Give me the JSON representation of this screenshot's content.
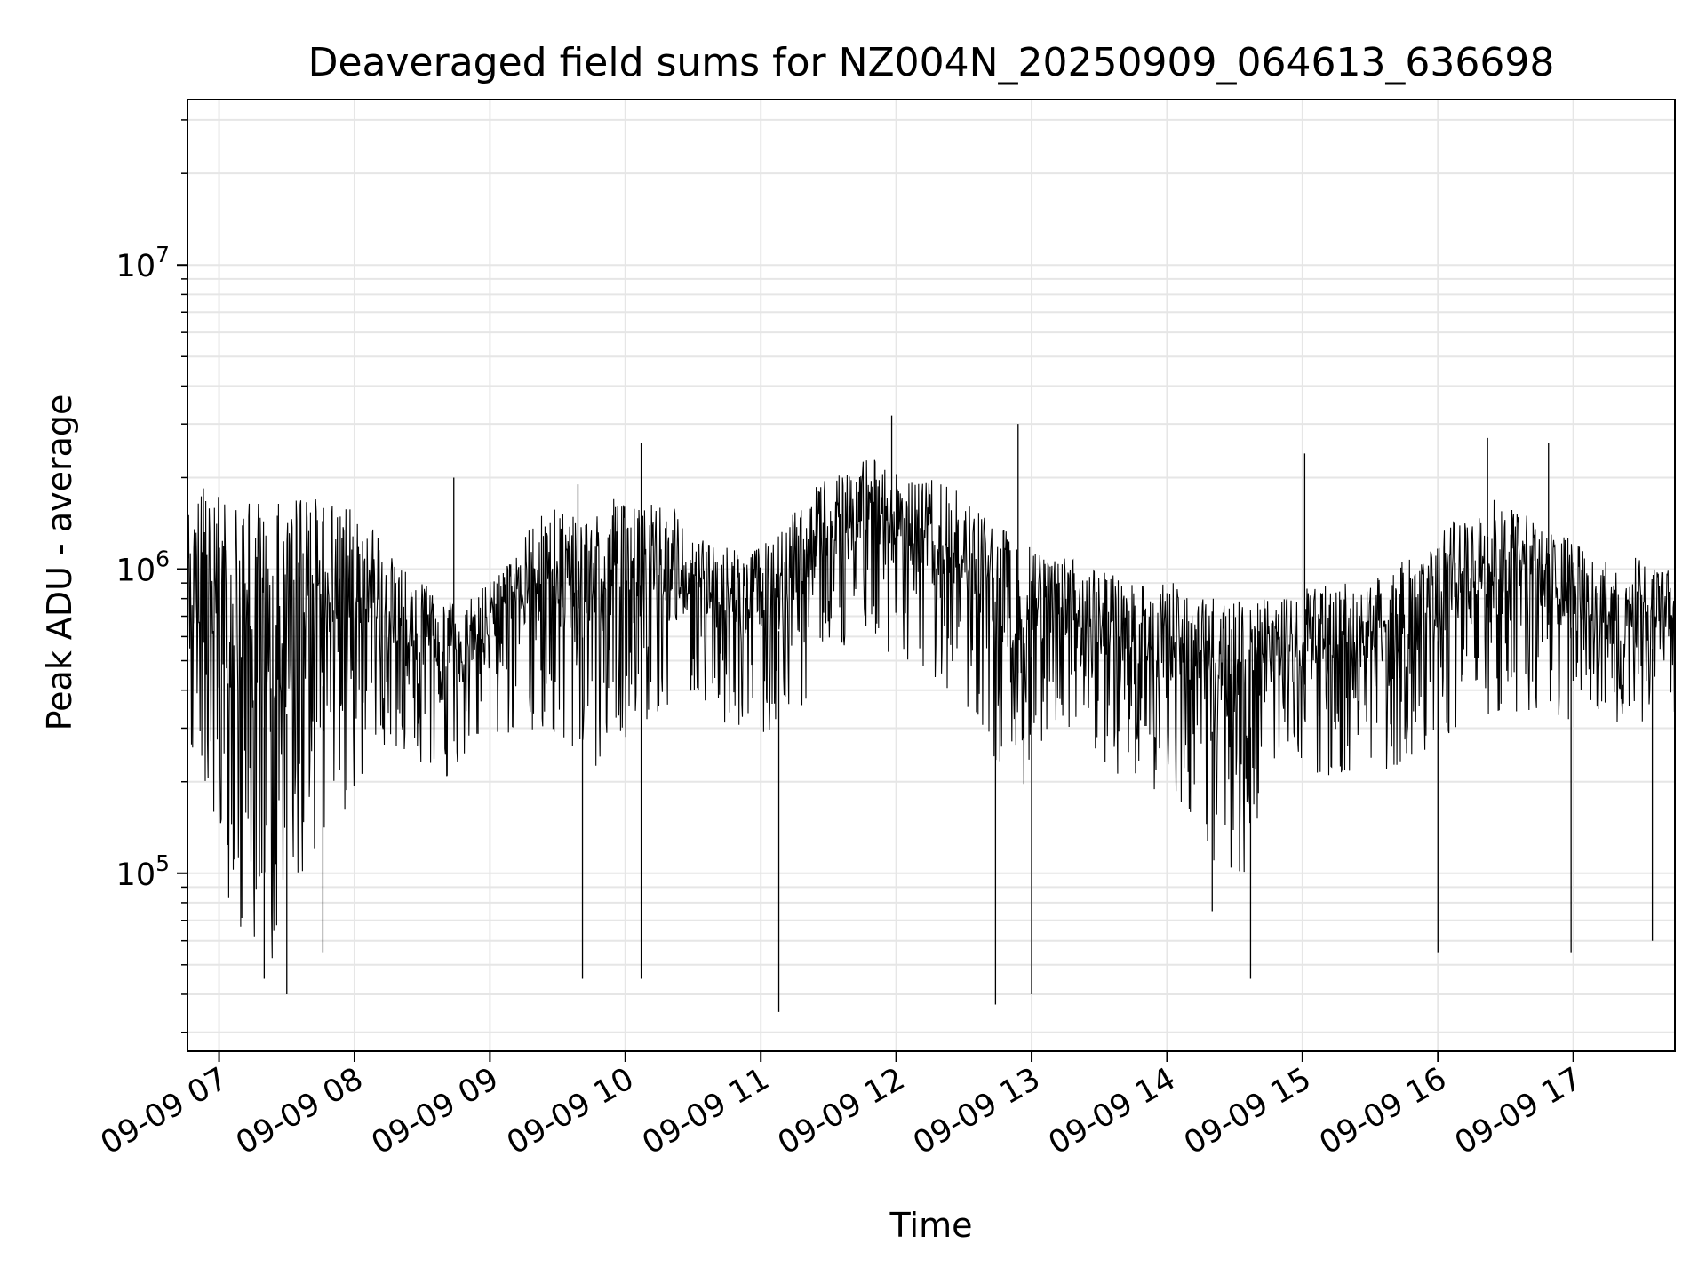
{
  "chart_data": {
    "type": "line",
    "title": "Deaveraged field sums for NZ004N_20250909_064613_636698",
    "xlabel": "Time",
    "ylabel": "Peak ADU - average",
    "yscale": "log",
    "ylim": [
      26000,
      35000000
    ],
    "xlim": [
      "2025-09-09 06:46",
      "2025-09-09 17:45"
    ],
    "grid": true,
    "line_color": "#000000",
    "grid_color": "#e6e6e6",
    "x_ticks": [
      {
        "value": "2025-09-09 07:00",
        "label": "09-09 07"
      },
      {
        "value": "2025-09-09 08:00",
        "label": "09-09 08"
      },
      {
        "value": "2025-09-09 09:00",
        "label": "09-09 09"
      },
      {
        "value": "2025-09-09 10:00",
        "label": "09-09 10"
      },
      {
        "value": "2025-09-09 11:00",
        "label": "09-09 11"
      },
      {
        "value": "2025-09-09 12:00",
        "label": "09-09 12"
      },
      {
        "value": "2025-09-09 13:00",
        "label": "09-09 13"
      },
      {
        "value": "2025-09-09 14:00",
        "label": "09-09 14"
      },
      {
        "value": "2025-09-09 15:00",
        "label": "09-09 15"
      },
      {
        "value": "2025-09-09 16:00",
        "label": "09-09 16"
      },
      {
        "value": "2025-09-09 17:00",
        "label": "09-09 17"
      }
    ],
    "y_ticks": [
      {
        "value": 100000,
        "base": "10",
        "exp": "5"
      },
      {
        "value": 1000000,
        "base": "10",
        "exp": "6"
      },
      {
        "value": 10000000,
        "base": "10",
        "exp": "7"
      }
    ],
    "series": [
      {
        "x": [
          "2025-09-09 06:46",
          "2025-09-09 06:52",
          "2025-09-09 06:58",
          "2025-09-09 07:04",
          "2025-09-09 07:10",
          "2025-09-09 07:16",
          "2025-09-09 07:22",
          "2025-09-09 07:28",
          "2025-09-09 07:34",
          "2025-09-09 07:40",
          "2025-09-09 07:46",
          "2025-09-09 07:52",
          "2025-09-09 07:58",
          "2025-09-09 08:04",
          "2025-09-09 08:10",
          "2025-09-09 08:16",
          "2025-09-09 08:22",
          "2025-09-09 08:28",
          "2025-09-09 08:34",
          "2025-09-09 08:40",
          "2025-09-09 08:46",
          "2025-09-09 08:52",
          "2025-09-09 08:58",
          "2025-09-09 09:04",
          "2025-09-09 09:10",
          "2025-09-09 09:16",
          "2025-09-09 09:22",
          "2025-09-09 09:28",
          "2025-09-09 09:34",
          "2025-09-09 09:40",
          "2025-09-09 09:46",
          "2025-09-09 09:52",
          "2025-09-09 09:58",
          "2025-09-09 10:04",
          "2025-09-09 10:10",
          "2025-09-09 10:16",
          "2025-09-09 10:22",
          "2025-09-09 10:28",
          "2025-09-09 10:34",
          "2025-09-09 10:40",
          "2025-09-09 10:46",
          "2025-09-09 10:52",
          "2025-09-09 10:58",
          "2025-09-09 11:04",
          "2025-09-09 11:10",
          "2025-09-09 11:16",
          "2025-09-09 11:22",
          "2025-09-09 11:28",
          "2025-09-09 11:34",
          "2025-09-09 11:40",
          "2025-09-09 11:46",
          "2025-09-09 11:52",
          "2025-09-09 11:58",
          "2025-09-09 12:04",
          "2025-09-09 12:10",
          "2025-09-09 12:16",
          "2025-09-09 12:22",
          "2025-09-09 12:28",
          "2025-09-09 12:34",
          "2025-09-09 12:40",
          "2025-09-09 12:46",
          "2025-09-09 12:52",
          "2025-09-09 12:58",
          "2025-09-09 13:04",
          "2025-09-09 13:10",
          "2025-09-09 13:16",
          "2025-09-09 13:22",
          "2025-09-09 13:28",
          "2025-09-09 13:34",
          "2025-09-09 13:40",
          "2025-09-09 13:46",
          "2025-09-09 13:52",
          "2025-09-09 13:58",
          "2025-09-09 14:04",
          "2025-09-09 14:10",
          "2025-09-09 14:16",
          "2025-09-09 14:22",
          "2025-09-09 14:28",
          "2025-09-09 14:34",
          "2025-09-09 14:40",
          "2025-09-09 14:46",
          "2025-09-09 14:52",
          "2025-09-09 14:58",
          "2025-09-09 15:04",
          "2025-09-09 15:10",
          "2025-09-09 15:16",
          "2025-09-09 15:22",
          "2025-09-09 15:28",
          "2025-09-09 15:34",
          "2025-09-09 15:40",
          "2025-09-09 15:46",
          "2025-09-09 15:52",
          "2025-09-09 15:58",
          "2025-09-09 16:04",
          "2025-09-09 16:10",
          "2025-09-09 16:16",
          "2025-09-09 16:22",
          "2025-09-09 16:28",
          "2025-09-09 16:34",
          "2025-09-09 16:40",
          "2025-09-09 16:46",
          "2025-09-09 16:52",
          "2025-09-09 16:58",
          "2025-09-09 17:04",
          "2025-09-09 17:10",
          "2025-09-09 17:16",
          "2025-09-09 17:22",
          "2025-09-09 17:28",
          "2025-09-09 17:34",
          "2025-09-09 17:40",
          "2025-09-09 17:45"
        ],
        "upper": [
          1500000,
          1900000,
          1800000,
          1800000,
          1700000,
          1700000,
          1800000,
          1800000,
          1700000,
          1800000,
          1700000,
          1600000,
          1600000,
          1500000,
          1300000,
          1100000,
          1000000,
          900000,
          900000,
          800000,
          800000,
          800000,
          900000,
          1000000,
          1100000,
          1300000,
          1500000,
          1600000,
          1600000,
          1500000,
          1500000,
          1700000,
          1700000,
          1600000,
          1700000,
          1600000,
          1600000,
          1400000,
          1300000,
          1200000,
          1200000,
          1100000,
          1200000,
          1300000,
          1400000,
          1600000,
          1800000,
          2000000,
          2100000,
          2200000,
          2300000,
          2300000,
          2200000,
          2100000,
          2000000,
          2000000,
          1900000,
          1800000,
          1700000,
          1500000,
          1400000,
          1300000,
          1200000,
          1200000,
          1200000,
          1100000,
          1100000,
          1000000,
          1000000,
          1000000,
          900000,
          900000,
          900000,
          900000,
          800000,
          800000,
          800000,
          800000,
          800000,
          800000,
          800000,
          800000,
          800000,
          900000,
          900000,
          900000,
          900000,
          900000,
          1000000,
          1000000,
          1100000,
          1100000,
          1200000,
          1400000,
          1500000,
          1600000,
          1700000,
          1700000,
          1600000,
          1500000,
          1400000,
          1300000,
          1300000,
          1200000,
          1100000,
          1100000,
          1100000,
          1100000,
          1000000,
          1000000,
          1000000
        ],
        "lower": [
          250000,
          120000,
          90000,
          70000,
          60000,
          55000,
          50000,
          60000,
          70000,
          80000,
          100000,
          120000,
          150000,
          200000,
          250000,
          250000,
          250000,
          220000,
          200000,
          200000,
          220000,
          250000,
          260000,
          270000,
          280000,
          280000,
          280000,
          270000,
          260000,
          240000,
          220000,
          230000,
          270000,
          300000,
          320000,
          330000,
          330000,
          330000,
          320000,
          310000,
          300000,
          290000,
          280000,
          280000,
          290000,
          320000,
          380000,
          450000,
          520000,
          580000,
          600000,
          580000,
          520000,
          470000,
          440000,
          410000,
          380000,
          350000,
          320000,
          280000,
          200000,
          150000,
          200000,
          270000,
          280000,
          280000,
          260000,
          240000,
          220000,
          200000,
          180000,
          170000,
          170000,
          170000,
          150000,
          120000,
          100000,
          90000,
          100000,
          130000,
          160000,
          180000,
          200000,
          210000,
          210000,
          210000,
          210000,
          210000,
          210000,
          220000,
          230000,
          240000,
          260000,
          280000,
          300000,
          320000,
          330000,
          330000,
          330000,
          320000,
          320000,
          320000,
          320000,
          320000,
          320000,
          320000,
          310000,
          300000,
          300000,
          300000,
          300000
        ]
      }
    ],
    "spikes": [
      {
        "x": "2025-09-09 06:46",
        "value": 78000
      },
      {
        "x": "2025-09-09 07:20",
        "value": 45000
      },
      {
        "x": "2025-09-09 07:30",
        "value": 40000
      },
      {
        "x": "2025-09-09 07:46",
        "value": 55000
      },
      {
        "x": "2025-09-09 08:44",
        "value": 2000000
      },
      {
        "x": "2025-09-09 09:39",
        "value": 1900000
      },
      {
        "x": "2025-09-09 09:41",
        "value": 45000
      },
      {
        "x": "2025-09-09 10:07",
        "value": 2600000
      },
      {
        "x": "2025-09-09 10:07",
        "value": 45000
      },
      {
        "x": "2025-09-09 11:08",
        "value": 35000
      },
      {
        "x": "2025-09-09 11:58",
        "value": 3200000
      },
      {
        "x": "2025-09-09 12:44",
        "value": 37000
      },
      {
        "x": "2025-09-09 12:54",
        "value": 3000000
      },
      {
        "x": "2025-09-09 13:00",
        "value": 40000
      },
      {
        "x": "2025-09-09 14:20",
        "value": 75000
      },
      {
        "x": "2025-09-09 14:37",
        "value": 45000
      },
      {
        "x": "2025-09-09 15:01",
        "value": 2400000
      },
      {
        "x": "2025-09-09 16:00",
        "value": 55000
      },
      {
        "x": "2025-09-09 16:22",
        "value": 2700000
      },
      {
        "x": "2025-09-09 16:49",
        "value": 2600000
      },
      {
        "x": "2025-09-09 16:59",
        "value": 55000
      },
      {
        "x": "2025-09-09 17:35",
        "value": 60000
      }
    ]
  }
}
